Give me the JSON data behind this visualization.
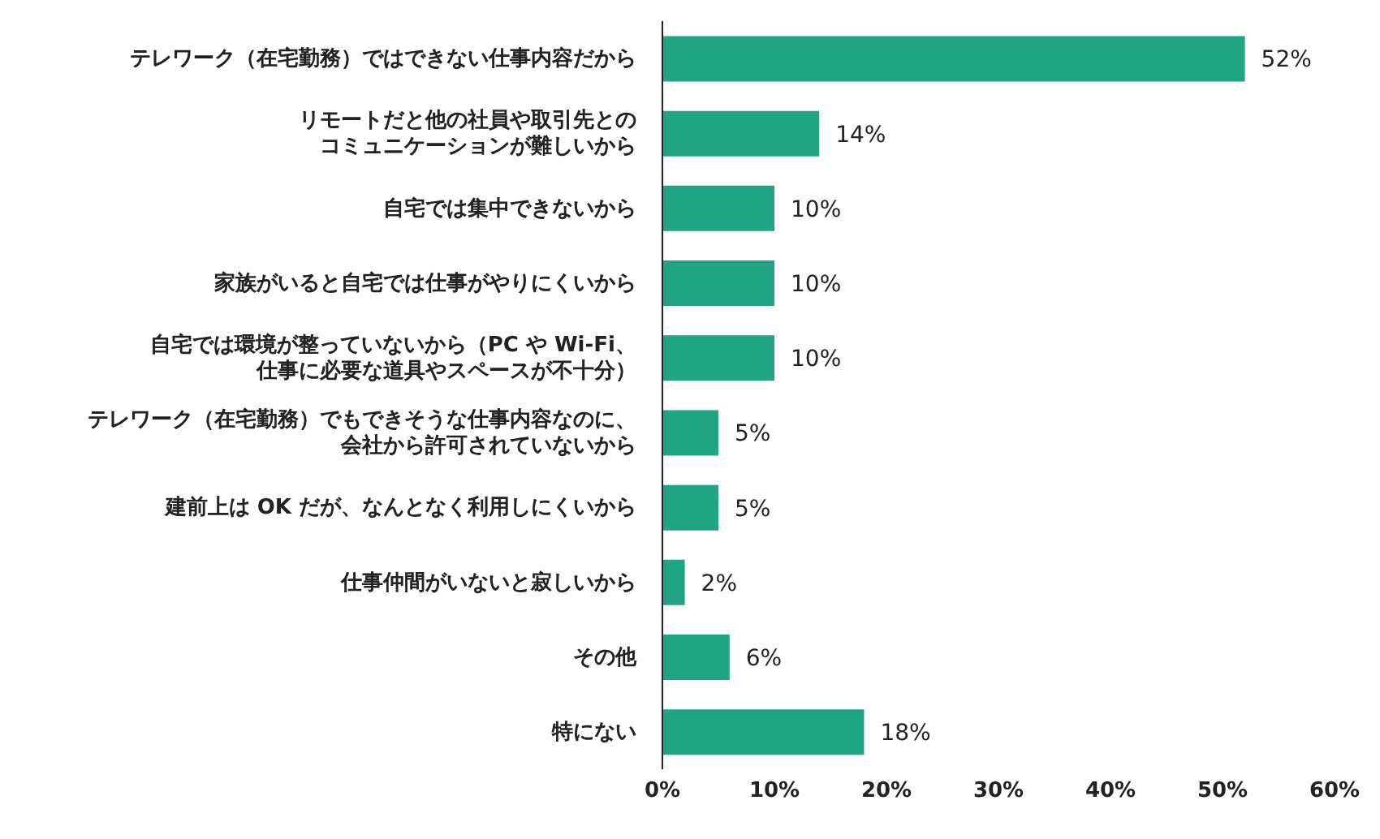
{
  "chart_data": {
    "type": "bar",
    "orientation": "horizontal",
    "categories": [
      "テレワーク（在宅勤務）ではできない仕事内容だから",
      "リモートだと他の社員や取引先とのコミュニケーションが難しいから",
      "自宅では集中できないから",
      "家族がいると自宅では仕事がやりにくいから",
      "自宅では環境が整っていないから（PC や Wi-Fi、仕事に必要な道具やスペースが不十分）",
      "テレワーク（在宅勤務）でもできそうな仕事内容なのに、会社から許可されていないから",
      "建前上は OK だが、なんとなく利用しにくいから",
      "仕事仲間がいないと寂しいから",
      "その他",
      "特にない"
    ],
    "values": [
      52,
      14,
      10,
      10,
      10,
      5,
      5,
      2,
      6,
      18
    ],
    "value_labels": [
      "52%",
      "14%",
      "10%",
      "10%",
      "10%",
      "5%",
      "5%",
      "2%",
      "6%",
      "18%"
    ],
    "color": "#1fa584",
    "xlim": [
      0,
      60
    ],
    "xticks": [
      {
        "value": 0,
        "label": "0%"
      },
      {
        "value": 10,
        "label": "10%"
      },
      {
        "value": 20,
        "label": "20%"
      },
      {
        "value": 30,
        "label": "30%"
      },
      {
        "value": 40,
        "label": "40%"
      },
      {
        "value": 50,
        "label": "50%"
      },
      {
        "value": 60,
        "label": "60%"
      }
    ],
    "grid": false,
    "legend": false
  }
}
